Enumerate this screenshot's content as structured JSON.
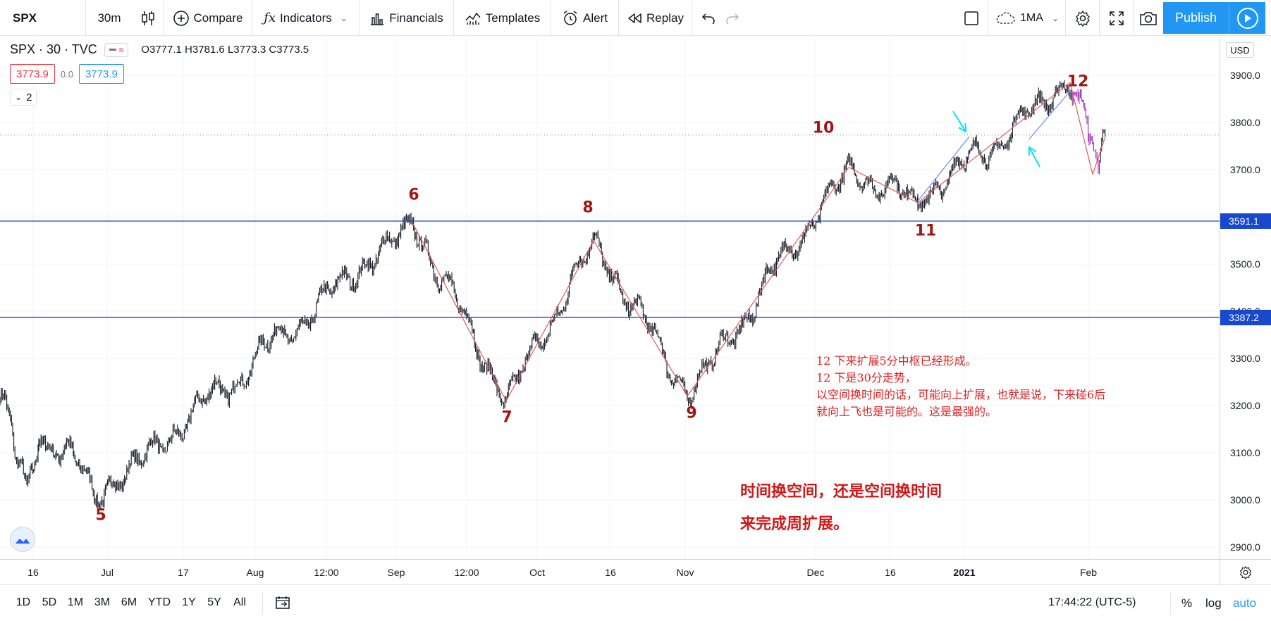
{
  "toolbar": {
    "symbol": "SPX",
    "interval": "30m",
    "compare": "Compare",
    "indicators": "Indicators",
    "financials": "Financials",
    "templates": "Templates",
    "alert": "Alert",
    "replay": "Replay",
    "layout": "1MA",
    "publish": "Publish"
  },
  "legend": {
    "title": "SPX · 30 · TVC",
    "open_label": "O",
    "open": "3777.1",
    "high_label": "H",
    "high": "3781.6",
    "low_label": "L",
    "low": "3773.3",
    "close_label": "C",
    "close": "3773.5",
    "bid": "3773.9",
    "spread": "0.0",
    "ask": "3773.9",
    "collapsed_count": "2"
  },
  "price_axis": {
    "currency": "USD",
    "ticks": [
      "3900.0",
      "3800.0",
      "3700.0",
      "3600.0",
      "3500.0",
      "3400.0",
      "3300.0",
      "3200.0",
      "3100.0",
      "3000.0",
      "2900.0"
    ],
    "hlines": [
      "3591.1",
      "3387.2"
    ]
  },
  "time_axis": {
    "ticks": [
      "16",
      "Jul",
      "17",
      "Aug",
      "12:00",
      "Sep",
      "12:00",
      "Oct",
      "16",
      "Nov",
      "Dec",
      "16",
      "2021",
      "Feb"
    ]
  },
  "colors": {
    "accent": "#2196f3",
    "hline": "#1848cc",
    "wave_line": "#e05a5a",
    "wave_label": "#a31515",
    "note_text": "#e02020",
    "arrow": "#00e5ff",
    "candles": "#131722"
  },
  "chart_data": {
    "type": "line",
    "symbol": "SPX",
    "interval": "30",
    "wave_points": [
      {
        "label": "5",
        "price": 3000
      },
      {
        "label": "6",
        "price": 3588
      },
      {
        "label": "7",
        "price": 3210
      },
      {
        "label": "8",
        "price": 3550
      },
      {
        "label": "9",
        "price": 3220
      },
      {
        "label": "10",
        "price": 3705
      },
      {
        "label": "11",
        "price": 3630
      },
      {
        "label": "12",
        "price": 3885
      }
    ],
    "horizontal_levels": [
      3591.1,
      3387.2
    ],
    "ylim": [
      2880,
      3960
    ],
    "last_price": 3773.5
  },
  "annotations": {
    "wave_labels": [
      "5",
      "6",
      "7",
      "8",
      "9",
      "10",
      "11",
      "12"
    ],
    "note_lines": [
      "12  下来扩展5分中枢已经形成。",
      "12  下是30分走势，",
      "以空间换时间的话，可能向上扩展，也就是说，下来碰6后",
      "就向上飞也是可能的。这是最强的。"
    ],
    "big_note_1": "时间换空间，还是空间换时间",
    "big_note_2": "来完成周扩展。"
  },
  "bottom": {
    "ranges": [
      "1D",
      "5D",
      "1M",
      "3M",
      "6M",
      "YTD",
      "1Y",
      "5Y",
      "All"
    ],
    "clock": "17:44:22 (UTC-5)",
    "percent": "%",
    "log": "log",
    "auto": "auto"
  }
}
